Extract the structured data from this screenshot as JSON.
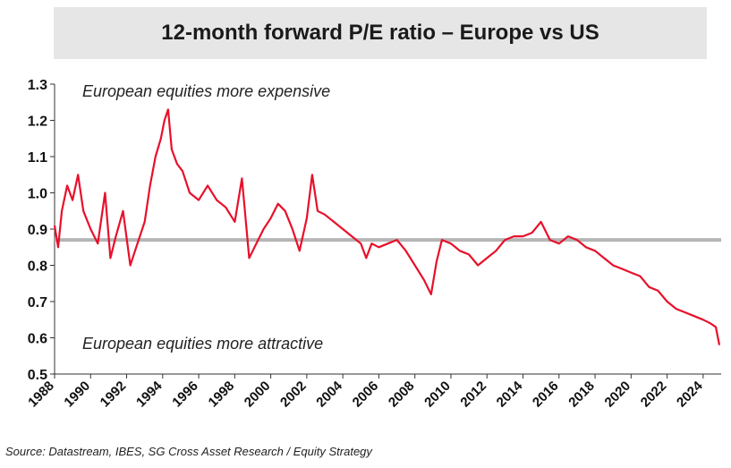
{
  "chart_data": {
    "type": "line",
    "title": "12-month forward P/E ratio – Europe vs US",
    "ylim": [
      0.5,
      1.3
    ],
    "y_ticks": [
      "1.3",
      "1.2",
      "1.1",
      "1.0",
      "0.9",
      "0.8",
      "0.7",
      "0.6",
      "0.5"
    ],
    "xlim": [
      1988,
      2025
    ],
    "x_ticks": [
      "1988",
      "1990",
      "1992",
      "1994",
      "1996",
      "1998",
      "2000",
      "2002",
      "2004",
      "2006",
      "2008",
      "2010",
      "2012",
      "2014",
      "2016",
      "2018",
      "2020",
      "2022",
      "2024"
    ],
    "grid": false,
    "series": [
      {
        "name": "",
        "color": "#e8102a",
        "x": [
          1988.0,
          1988.2,
          1988.4,
          1988.7,
          1989.0,
          1989.3,
          1989.6,
          1990.0,
          1990.4,
          1990.8,
          1991.1,
          1991.4,
          1991.8,
          1992.2,
          1992.6,
          1993.0,
          1993.3,
          1993.6,
          1993.9,
          1994.1,
          1994.3,
          1994.5,
          1994.8,
          1995.1,
          1995.5,
          1996.0,
          1996.5,
          1997.0,
          1997.5,
          1998.0,
          1998.4,
          1998.8,
          1999.2,
          1999.6,
          2000.0,
          2000.4,
          2000.8,
          2001.2,
          2001.6,
          2002.0,
          2002.3,
          2002.6,
          2003.0,
          2003.5,
          2004.0,
          2004.5,
          2005.0,
          2005.3,
          2005.6,
          2006.0,
          2006.5,
          2007.0,
          2007.5,
          2008.0,
          2008.5,
          2008.9,
          2009.2,
          2009.5,
          2010.0,
          2010.5,
          2011.0,
          2011.5,
          2012.0,
          2012.5,
          2013.0,
          2013.5,
          2014.0,
          2014.5,
          2015.0,
          2015.5,
          2016.0,
          2016.5,
          2017.0,
          2017.5,
          2018.0,
          2018.5,
          2019.0,
          2019.5,
          2020.0,
          2020.5,
          2021.0,
          2021.5,
          2022.0,
          2022.5,
          2023.0,
          2023.5,
          2024.0,
          2024.4,
          2024.7,
          2024.9
        ],
        "values": [
          0.91,
          0.85,
          0.95,
          1.02,
          0.98,
          1.05,
          0.95,
          0.9,
          0.86,
          1.0,
          0.82,
          0.88,
          0.95,
          0.8,
          0.86,
          0.92,
          1.02,
          1.1,
          1.15,
          1.2,
          1.23,
          1.12,
          1.08,
          1.06,
          1.0,
          0.98,
          1.02,
          0.98,
          0.96,
          0.92,
          1.04,
          0.82,
          0.86,
          0.9,
          0.93,
          0.97,
          0.95,
          0.9,
          0.84,
          0.93,
          1.05,
          0.95,
          0.94,
          0.92,
          0.9,
          0.88,
          0.86,
          0.82,
          0.86,
          0.85,
          0.86,
          0.87,
          0.84,
          0.8,
          0.76,
          0.72,
          0.81,
          0.87,
          0.86,
          0.84,
          0.83,
          0.8,
          0.82,
          0.84,
          0.87,
          0.88,
          0.88,
          0.89,
          0.92,
          0.87,
          0.86,
          0.88,
          0.87,
          0.85,
          0.84,
          0.82,
          0.8,
          0.79,
          0.78,
          0.77,
          0.74,
          0.73,
          0.7,
          0.68,
          0.67,
          0.66,
          0.65,
          0.64,
          0.63,
          0.58
        ]
      }
    ],
    "reference_line": {
      "y": 0.87,
      "color": "#b5b5b5"
    },
    "annotations": [
      "European equities more expensive",
      "European equities more attractive"
    ],
    "source": "Source: Datastream, IBES, SG Cross Asset Research / Equity Strategy"
  }
}
